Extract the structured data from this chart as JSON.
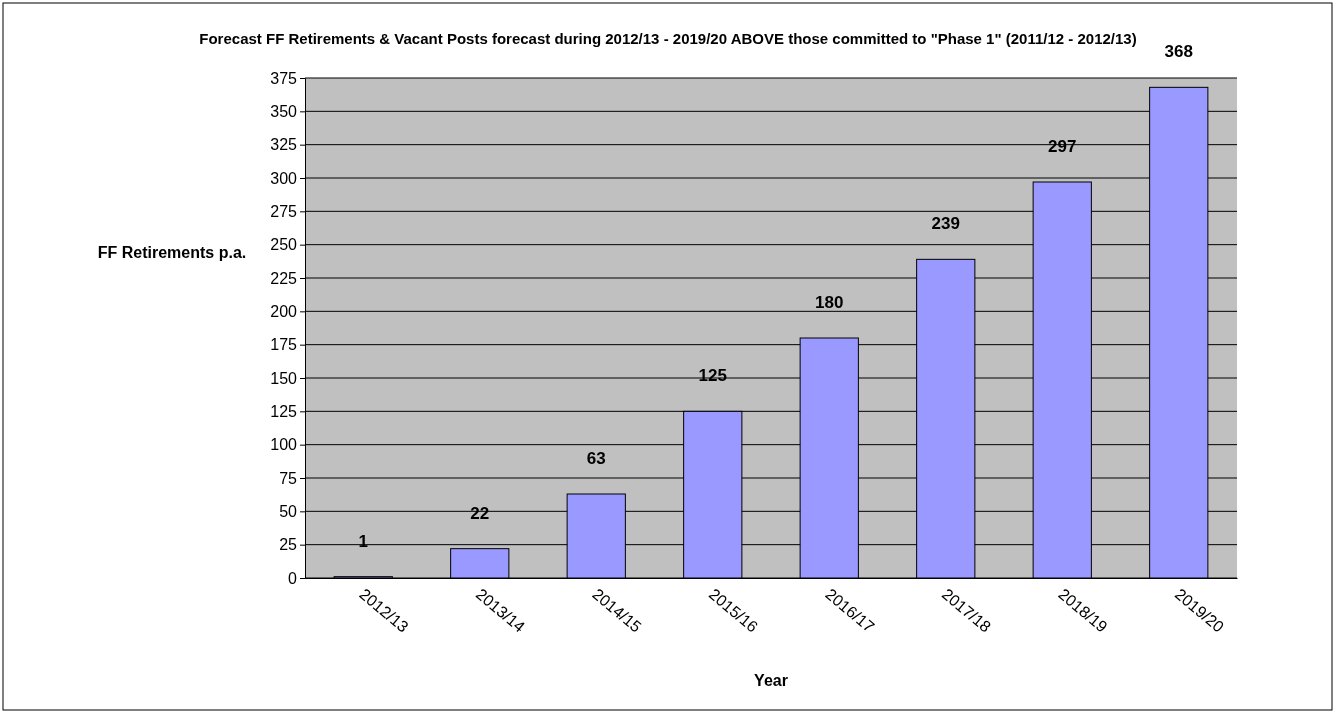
{
  "chart_data": {
    "type": "bar",
    "title": "Forecast FF Retirements & Vacant Posts forecast during 2012/13 - 2019/20 ABOVE those committed to \"Phase 1\" (2011/12 - 2012/13)",
    "xlabel": "Year",
    "ylabel": "FF Retirements p.a.",
    "categories": [
      "2012/13",
      "2013/14",
      "2014/15",
      "2015/16",
      "2016/17",
      "2017/18",
      "2018/19",
      "2019/20"
    ],
    "values": [
      1,
      22,
      63,
      125,
      180,
      239,
      297,
      368
    ],
    "color": "#9999ff",
    "ylim": [
      0,
      375
    ],
    "yticks": [
      0,
      25,
      50,
      75,
      100,
      125,
      150,
      175,
      200,
      225,
      250,
      275,
      300,
      325,
      350,
      375
    ],
    "grid": "y",
    "data_labels": true
  }
}
